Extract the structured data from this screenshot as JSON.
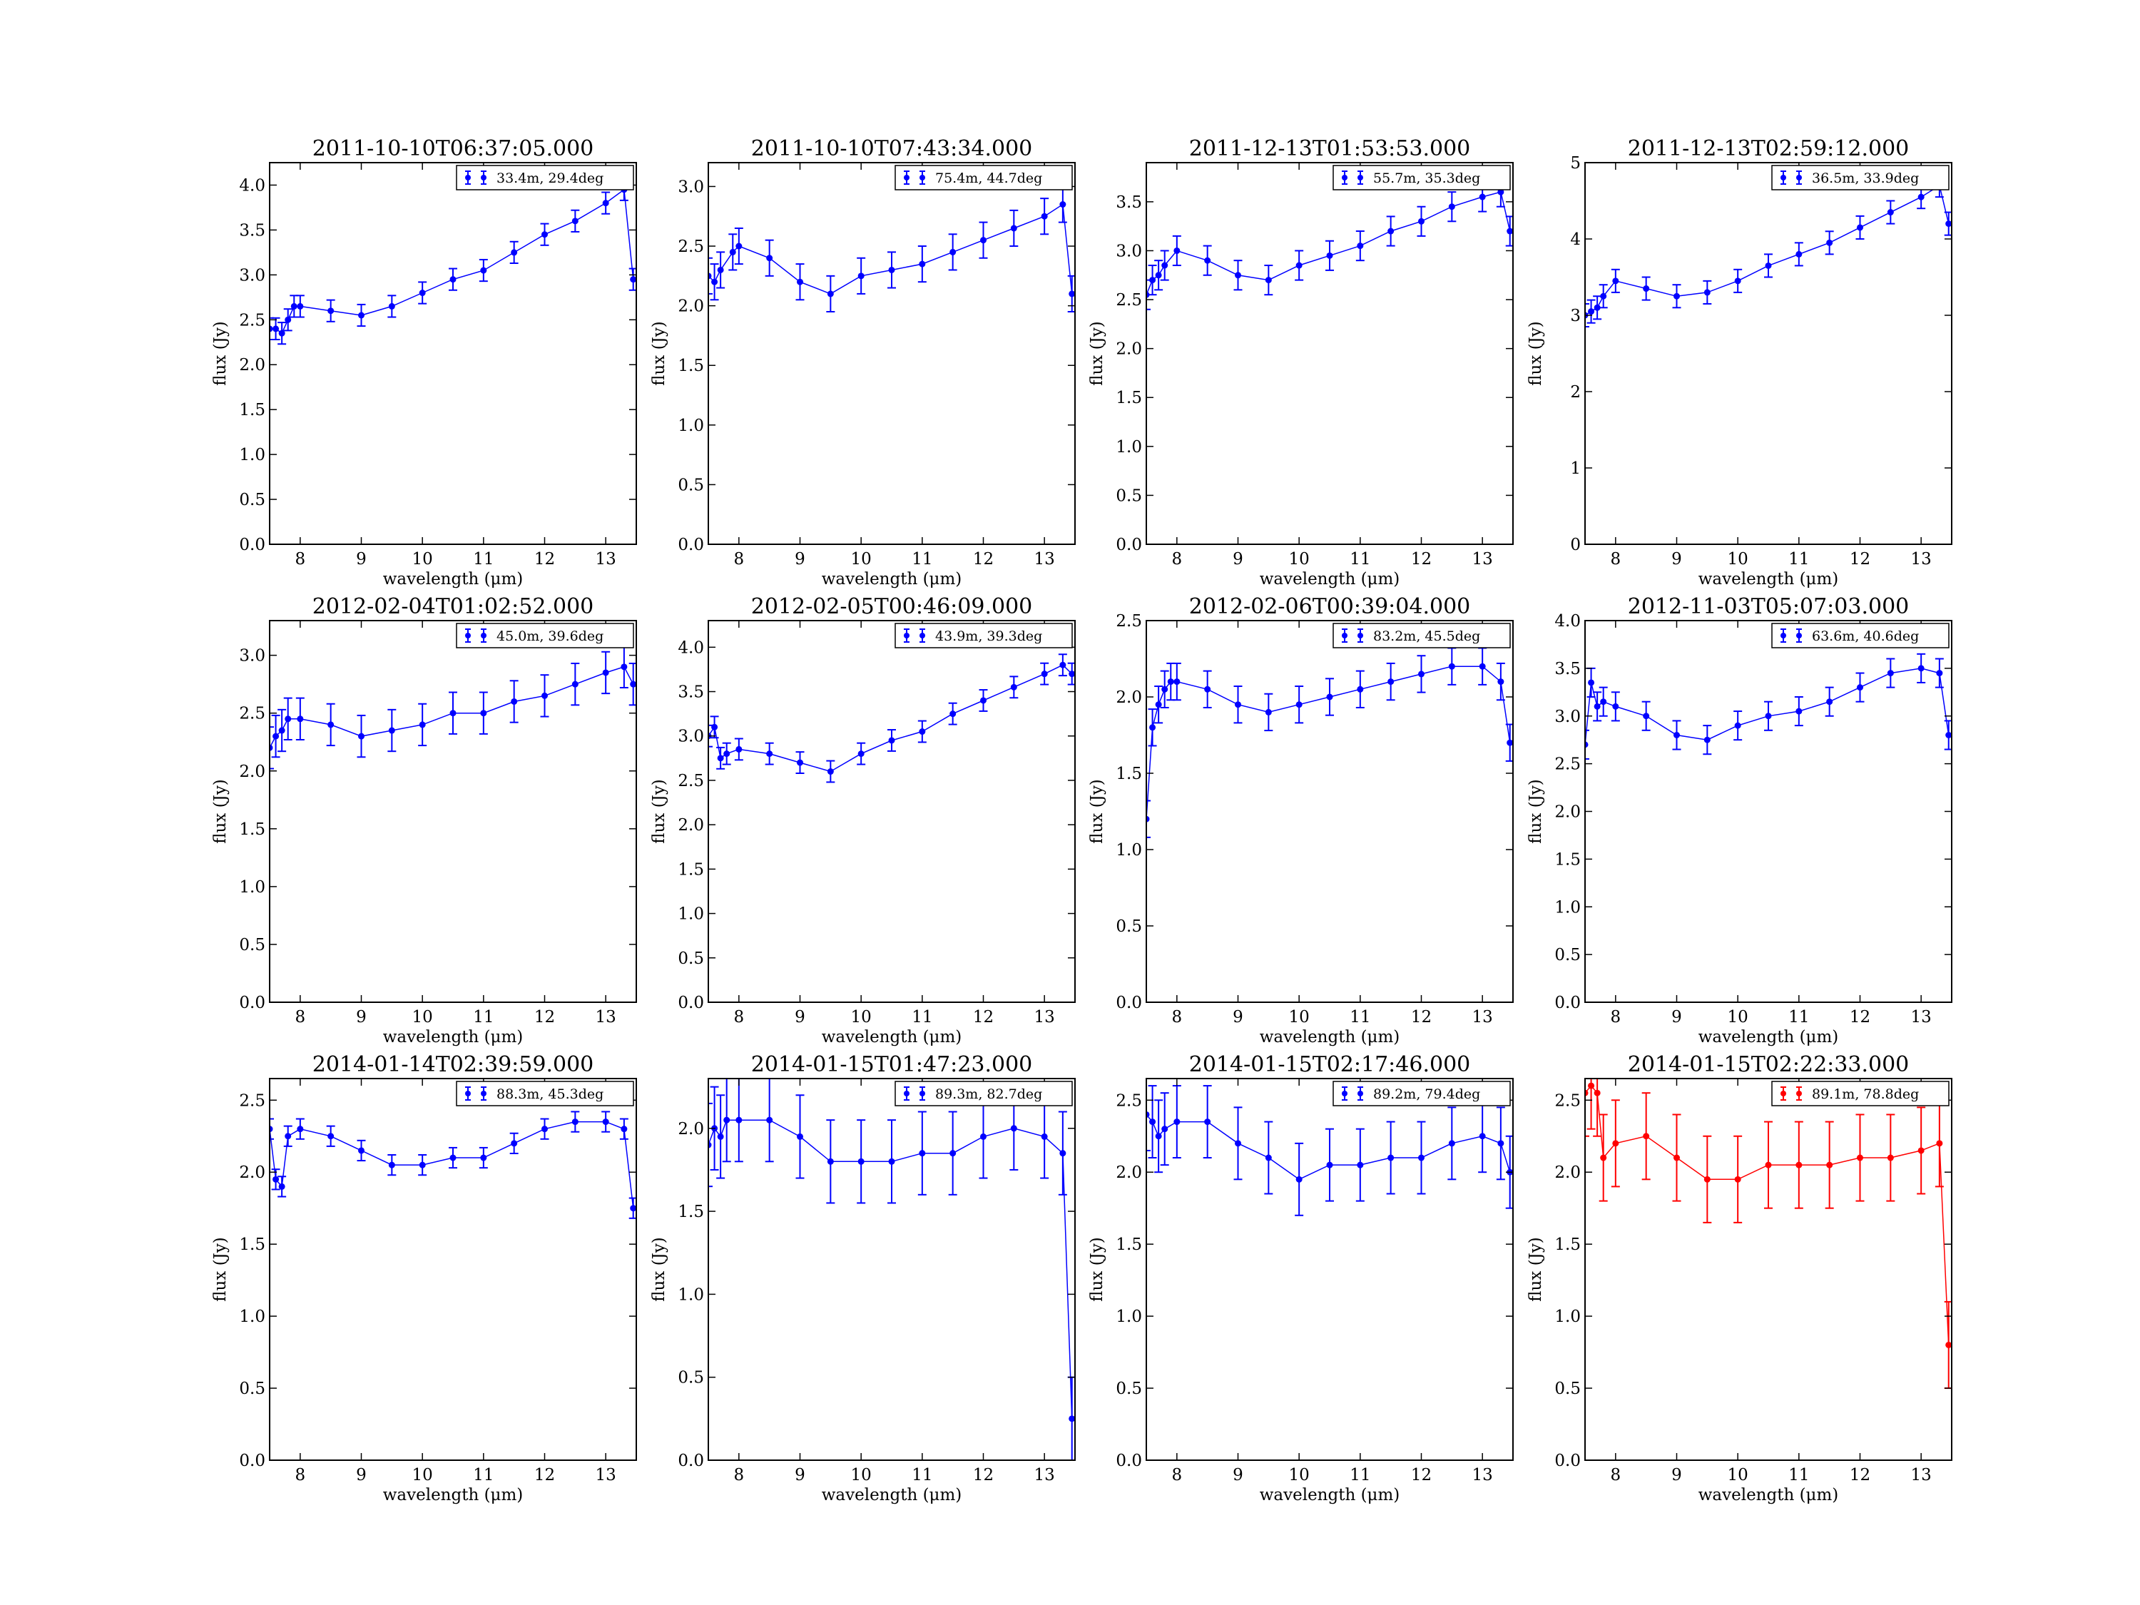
{
  "figure": {
    "xlabel": "wavelength (μm)",
    "ylabel": "flux (Jy)"
  },
  "chart_data": [
    {
      "type": "scatter",
      "title": "2011-10-10T06:37:05.000",
      "legend": "33.4m, 29.4deg",
      "color": "#0000ff",
      "xlim": [
        7.5,
        13.5
      ],
      "ylim": [
        0,
        4.25
      ],
      "yticks": [
        0.0,
        0.5,
        1.0,
        1.5,
        2.0,
        2.5,
        3.0,
        3.5,
        4.0
      ],
      "xticks": [
        8,
        9,
        10,
        11,
        12,
        13
      ],
      "err": 0.12,
      "series": [
        {
          "name": "33.4m, 29.4deg",
          "x": [
            7.5,
            7.6,
            7.7,
            7.8,
            7.9,
            8.0,
            8.5,
            9.0,
            9.5,
            10.0,
            10.5,
            11.0,
            11.5,
            12.0,
            12.5,
            13.0,
            13.3,
            13.45
          ],
          "y": [
            2.4,
            2.4,
            2.35,
            2.5,
            2.65,
            2.65,
            2.6,
            2.55,
            2.65,
            2.8,
            2.95,
            3.05,
            3.25,
            3.45,
            3.6,
            3.8,
            3.95,
            2.95
          ]
        }
      ]
    },
    {
      "type": "scatter",
      "title": "2011-10-10T07:43:34.000",
      "legend": "75.4m, 44.7deg",
      "color": "#0000ff",
      "xlim": [
        7.5,
        13.5
      ],
      "ylim": [
        0,
        3.2
      ],
      "yticks": [
        0.0,
        0.5,
        1.0,
        1.5,
        2.0,
        2.5,
        3.0
      ],
      "xticks": [
        8,
        9,
        10,
        11,
        12,
        13
      ],
      "err": 0.15,
      "series": [
        {
          "name": "75.4m, 44.7deg",
          "x": [
            7.5,
            7.6,
            7.7,
            7.9,
            8.0,
            8.5,
            9.0,
            9.5,
            10.0,
            10.5,
            11.0,
            11.5,
            12.0,
            12.5,
            13.0,
            13.3,
            13.45
          ],
          "y": [
            2.25,
            2.2,
            2.3,
            2.45,
            2.5,
            2.4,
            2.2,
            2.1,
            2.25,
            2.3,
            2.35,
            2.45,
            2.55,
            2.65,
            2.75,
            2.85,
            2.1
          ]
        }
      ]
    },
    {
      "type": "scatter",
      "title": "2011-12-13T01:53:53.000",
      "legend": "55.7m, 35.3deg",
      "color": "#0000ff",
      "xlim": [
        7.5,
        13.5
      ],
      "ylim": [
        0,
        3.9
      ],
      "yticks": [
        0.0,
        0.5,
        1.0,
        1.5,
        2.0,
        2.5,
        3.0,
        3.5
      ],
      "xticks": [
        8,
        9,
        10,
        11,
        12,
        13
      ],
      "err": 0.15,
      "series": [
        {
          "name": "55.7m, 35.3deg",
          "x": [
            7.5,
            7.6,
            7.7,
            7.8,
            8.0,
            8.5,
            9.0,
            9.5,
            10.0,
            10.5,
            11.0,
            11.5,
            12.0,
            12.5,
            13.0,
            13.3,
            13.45
          ],
          "y": [
            2.55,
            2.7,
            2.75,
            2.85,
            3.0,
            2.9,
            2.75,
            2.7,
            2.85,
            2.95,
            3.05,
            3.2,
            3.3,
            3.45,
            3.55,
            3.6,
            3.2
          ]
        }
      ]
    },
    {
      "type": "scatter",
      "title": "2011-12-13T02:59:12.000",
      "legend": "36.5m, 33.9deg",
      "color": "#0000ff",
      "xlim": [
        7.5,
        13.5
      ],
      "ylim": [
        0,
        5
      ],
      "yticks": [
        0,
        1,
        2,
        3,
        4,
        5
      ],
      "xticks": [
        8,
        9,
        10,
        11,
        12,
        13
      ],
      "err": 0.15,
      "series": [
        {
          "name": "36.5m, 33.9deg",
          "x": [
            7.5,
            7.6,
            7.7,
            7.8,
            8.0,
            8.5,
            9.0,
            9.5,
            10.0,
            10.5,
            11.0,
            11.5,
            12.0,
            12.5,
            13.0,
            13.3,
            13.45
          ],
          "y": [
            3.0,
            3.05,
            3.1,
            3.25,
            3.45,
            3.35,
            3.25,
            3.3,
            3.45,
            3.65,
            3.8,
            3.95,
            4.15,
            4.35,
            4.55,
            4.7,
            4.2
          ]
        }
      ]
    },
    {
      "type": "scatter",
      "title": "2012-02-04T01:02:52.000",
      "legend": "45.0m, 39.6deg",
      "color": "#0000ff",
      "xlim": [
        7.5,
        13.5
      ],
      "ylim": [
        0,
        3.3
      ],
      "yticks": [
        0.0,
        0.5,
        1.0,
        1.5,
        2.0,
        2.5,
        3.0
      ],
      "xticks": [
        8,
        9,
        10,
        11,
        12,
        13
      ],
      "err": 0.18,
      "series": [
        {
          "name": "45.0m, 39.6deg",
          "x": [
            7.5,
            7.6,
            7.7,
            7.8,
            8.0,
            8.5,
            9.0,
            9.5,
            10.0,
            10.5,
            11.0,
            11.5,
            12.0,
            12.5,
            13.0,
            13.3,
            13.45
          ],
          "y": [
            2.2,
            2.3,
            2.35,
            2.45,
            2.45,
            2.4,
            2.3,
            2.35,
            2.4,
            2.5,
            2.5,
            2.6,
            2.65,
            2.75,
            2.85,
            2.9,
            2.75
          ]
        }
      ]
    },
    {
      "type": "scatter",
      "title": "2012-02-05T00:46:09.000",
      "legend": "43.9m, 39.3deg",
      "color": "#0000ff",
      "xlim": [
        7.5,
        13.5
      ],
      "ylim": [
        0,
        4.3
      ],
      "yticks": [
        0.0,
        0.5,
        1.0,
        1.5,
        2.0,
        2.5,
        3.0,
        3.5,
        4.0
      ],
      "xticks": [
        8,
        9,
        10,
        11,
        12,
        13
      ],
      "err": 0.12,
      "series": [
        {
          "name": "43.9m, 39.3deg",
          "x": [
            7.5,
            7.6,
            7.7,
            7.8,
            8.0,
            8.5,
            9.0,
            9.5,
            10.0,
            10.5,
            11.0,
            11.5,
            12.0,
            12.5,
            13.0,
            13.3,
            13.45
          ],
          "y": [
            3.0,
            3.1,
            2.75,
            2.8,
            2.85,
            2.8,
            2.7,
            2.6,
            2.8,
            2.95,
            3.05,
            3.25,
            3.4,
            3.55,
            3.7,
            3.8,
            3.7
          ]
        }
      ]
    },
    {
      "type": "scatter",
      "title": "2012-02-06T00:39:04.000",
      "legend": "83.2m, 45.5deg",
      "color": "#0000ff",
      "xlim": [
        7.5,
        13.5
      ],
      "ylim": [
        0,
        2.5
      ],
      "yticks": [
        0.0,
        0.5,
        1.0,
        1.5,
        2.0,
        2.5
      ],
      "xticks": [
        8,
        9,
        10,
        11,
        12,
        13
      ],
      "err": 0.12,
      "series": [
        {
          "name": "83.2m, 45.5deg",
          "x": [
            7.5,
            7.6,
            7.7,
            7.8,
            7.9,
            8.0,
            8.5,
            9.0,
            9.5,
            10.0,
            10.5,
            11.0,
            11.5,
            12.0,
            12.5,
            13.0,
            13.3,
            13.45
          ],
          "y": [
            1.2,
            1.8,
            1.95,
            2.05,
            2.1,
            2.1,
            2.05,
            1.95,
            1.9,
            1.95,
            2.0,
            2.05,
            2.1,
            2.15,
            2.2,
            2.2,
            2.1,
            1.7
          ]
        }
      ]
    },
    {
      "type": "scatter",
      "title": "2012-11-03T05:07:03.000",
      "legend": "63.6m, 40.6deg",
      "color": "#0000ff",
      "xlim": [
        7.5,
        13.5
      ],
      "ylim": [
        0,
        4.0
      ],
      "yticks": [
        0.0,
        0.5,
        1.0,
        1.5,
        2.0,
        2.5,
        3.0,
        3.5,
        4.0
      ],
      "xticks": [
        8,
        9,
        10,
        11,
        12,
        13
      ],
      "err": 0.15,
      "series": [
        {
          "name": "63.6m, 40.6deg",
          "x": [
            7.5,
            7.6,
            7.7,
            7.8,
            8.0,
            8.5,
            9.0,
            9.5,
            10.0,
            10.5,
            11.0,
            11.5,
            12.0,
            12.5,
            13.0,
            13.3,
            13.45
          ],
          "y": [
            2.7,
            3.35,
            3.1,
            3.15,
            3.1,
            3.0,
            2.8,
            2.75,
            2.9,
            3.0,
            3.05,
            3.15,
            3.3,
            3.45,
            3.5,
            3.45,
            2.8
          ]
        }
      ]
    },
    {
      "type": "scatter",
      "title": "2014-01-14T02:39:59.000",
      "legend": "88.3m, 45.3deg",
      "color": "#0000ff",
      "xlim": [
        7.5,
        13.5
      ],
      "ylim": [
        0,
        2.65
      ],
      "yticks": [
        0.0,
        0.5,
        1.0,
        1.5,
        2.0,
        2.5
      ],
      "xticks": [
        8,
        9,
        10,
        11,
        12,
        13
      ],
      "err": 0.07,
      "series": [
        {
          "name": "88.3m, 45.3deg",
          "x": [
            7.5,
            7.6,
            7.7,
            7.8,
            8.0,
            8.5,
            9.0,
            9.5,
            10.0,
            10.5,
            11.0,
            11.5,
            12.0,
            12.5,
            13.0,
            13.3,
            13.45
          ],
          "y": [
            2.3,
            1.95,
            1.9,
            2.25,
            2.3,
            2.25,
            2.15,
            2.05,
            2.05,
            2.1,
            2.1,
            2.2,
            2.3,
            2.35,
            2.35,
            2.3,
            1.75
          ]
        }
      ]
    },
    {
      "type": "scatter",
      "title": "2014-01-15T01:47:23.000",
      "legend": "89.3m, 82.7deg",
      "color": "#0000ff",
      "xlim": [
        7.5,
        13.5
      ],
      "ylim": [
        0,
        2.3
      ],
      "yticks": [
        0.0,
        0.5,
        1.0,
        1.5,
        2.0
      ],
      "xticks": [
        8,
        9,
        10,
        11,
        12,
        13
      ],
      "err": 0.25,
      "series": [
        {
          "name": "89.3m, 82.7deg",
          "x": [
            7.5,
            7.6,
            7.7,
            7.8,
            8.0,
            8.5,
            9.0,
            9.5,
            10.0,
            10.5,
            11.0,
            11.5,
            12.0,
            12.5,
            13.0,
            13.3,
            13.45
          ],
          "y": [
            1.9,
            2.0,
            1.95,
            2.05,
            2.05,
            2.05,
            1.95,
            1.8,
            1.8,
            1.8,
            1.85,
            1.85,
            1.95,
            2.0,
            1.95,
            1.85,
            0.25
          ]
        }
      ]
    },
    {
      "type": "scatter",
      "title": "2014-01-15T02:17:46.000",
      "legend": "89.2m, 79.4deg",
      "color": "#0000ff",
      "xlim": [
        7.5,
        13.5
      ],
      "ylim": [
        0,
        2.65
      ],
      "yticks": [
        0.0,
        0.5,
        1.0,
        1.5,
        2.0,
        2.5
      ],
      "xticks": [
        8,
        9,
        10,
        11,
        12,
        13
      ],
      "err": 0.25,
      "series": [
        {
          "name": "89.2m, 79.4deg",
          "x": [
            7.5,
            7.6,
            7.7,
            7.8,
            8.0,
            8.5,
            9.0,
            9.5,
            10.0,
            10.5,
            11.0,
            11.5,
            12.0,
            12.5,
            13.0,
            13.3,
            13.45
          ],
          "y": [
            2.4,
            2.35,
            2.25,
            2.3,
            2.35,
            2.35,
            2.2,
            2.1,
            1.95,
            2.05,
            2.05,
            2.1,
            2.1,
            2.2,
            2.25,
            2.2,
            2.0
          ]
        }
      ]
    },
    {
      "type": "scatter",
      "title": "2014-01-15T02:22:33.000",
      "legend": "89.1m, 78.8deg",
      "color": "#ff0000",
      "xlim": [
        7.5,
        13.5
      ],
      "ylim": [
        0,
        2.65
      ],
      "yticks": [
        0.0,
        0.5,
        1.0,
        1.5,
        2.0,
        2.5
      ],
      "xticks": [
        8,
        9,
        10,
        11,
        12,
        13
      ],
      "err": 0.3,
      "series": [
        {
          "name": "89.1m, 78.8deg",
          "x": [
            7.5,
            7.6,
            7.7,
            7.8,
            8.0,
            8.5,
            9.0,
            9.5,
            10.0,
            10.5,
            11.0,
            11.5,
            12.0,
            12.5,
            13.0,
            13.3,
            13.45
          ],
          "y": [
            2.55,
            2.6,
            2.55,
            2.1,
            2.2,
            2.25,
            2.1,
            1.95,
            1.95,
            2.05,
            2.05,
            2.05,
            2.1,
            2.1,
            2.15,
            2.2,
            0.8
          ]
        }
      ]
    }
  ]
}
